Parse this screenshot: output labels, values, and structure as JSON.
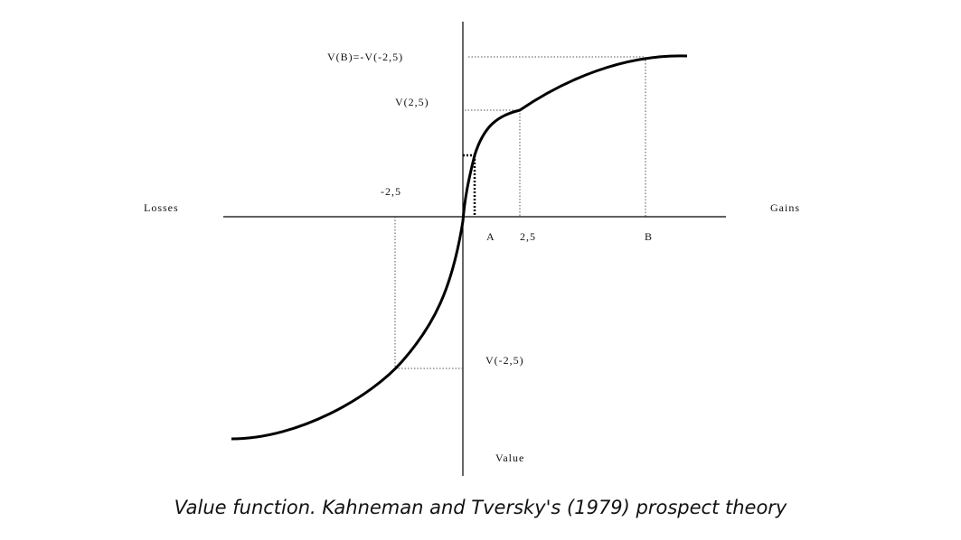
{
  "diagram": {
    "axis_labels": {
      "losses": "Losses",
      "gains": "Gains",
      "value": "Value"
    },
    "point_labels": {
      "a": "A",
      "two_five": "2,5",
      "b": "B",
      "minus_two_five": "-2,5"
    },
    "value_labels": {
      "v_b": "V(B)=-V(-2,5)",
      "v_two_five": "V(2,5)",
      "v_minus_two_five": "V(-2,5)"
    },
    "colors": {
      "curve": "#000000",
      "axis": "#000000",
      "guide": "#555555"
    }
  },
  "caption": "Value function. Kahneman and Tversky's (1979) prospect theory"
}
